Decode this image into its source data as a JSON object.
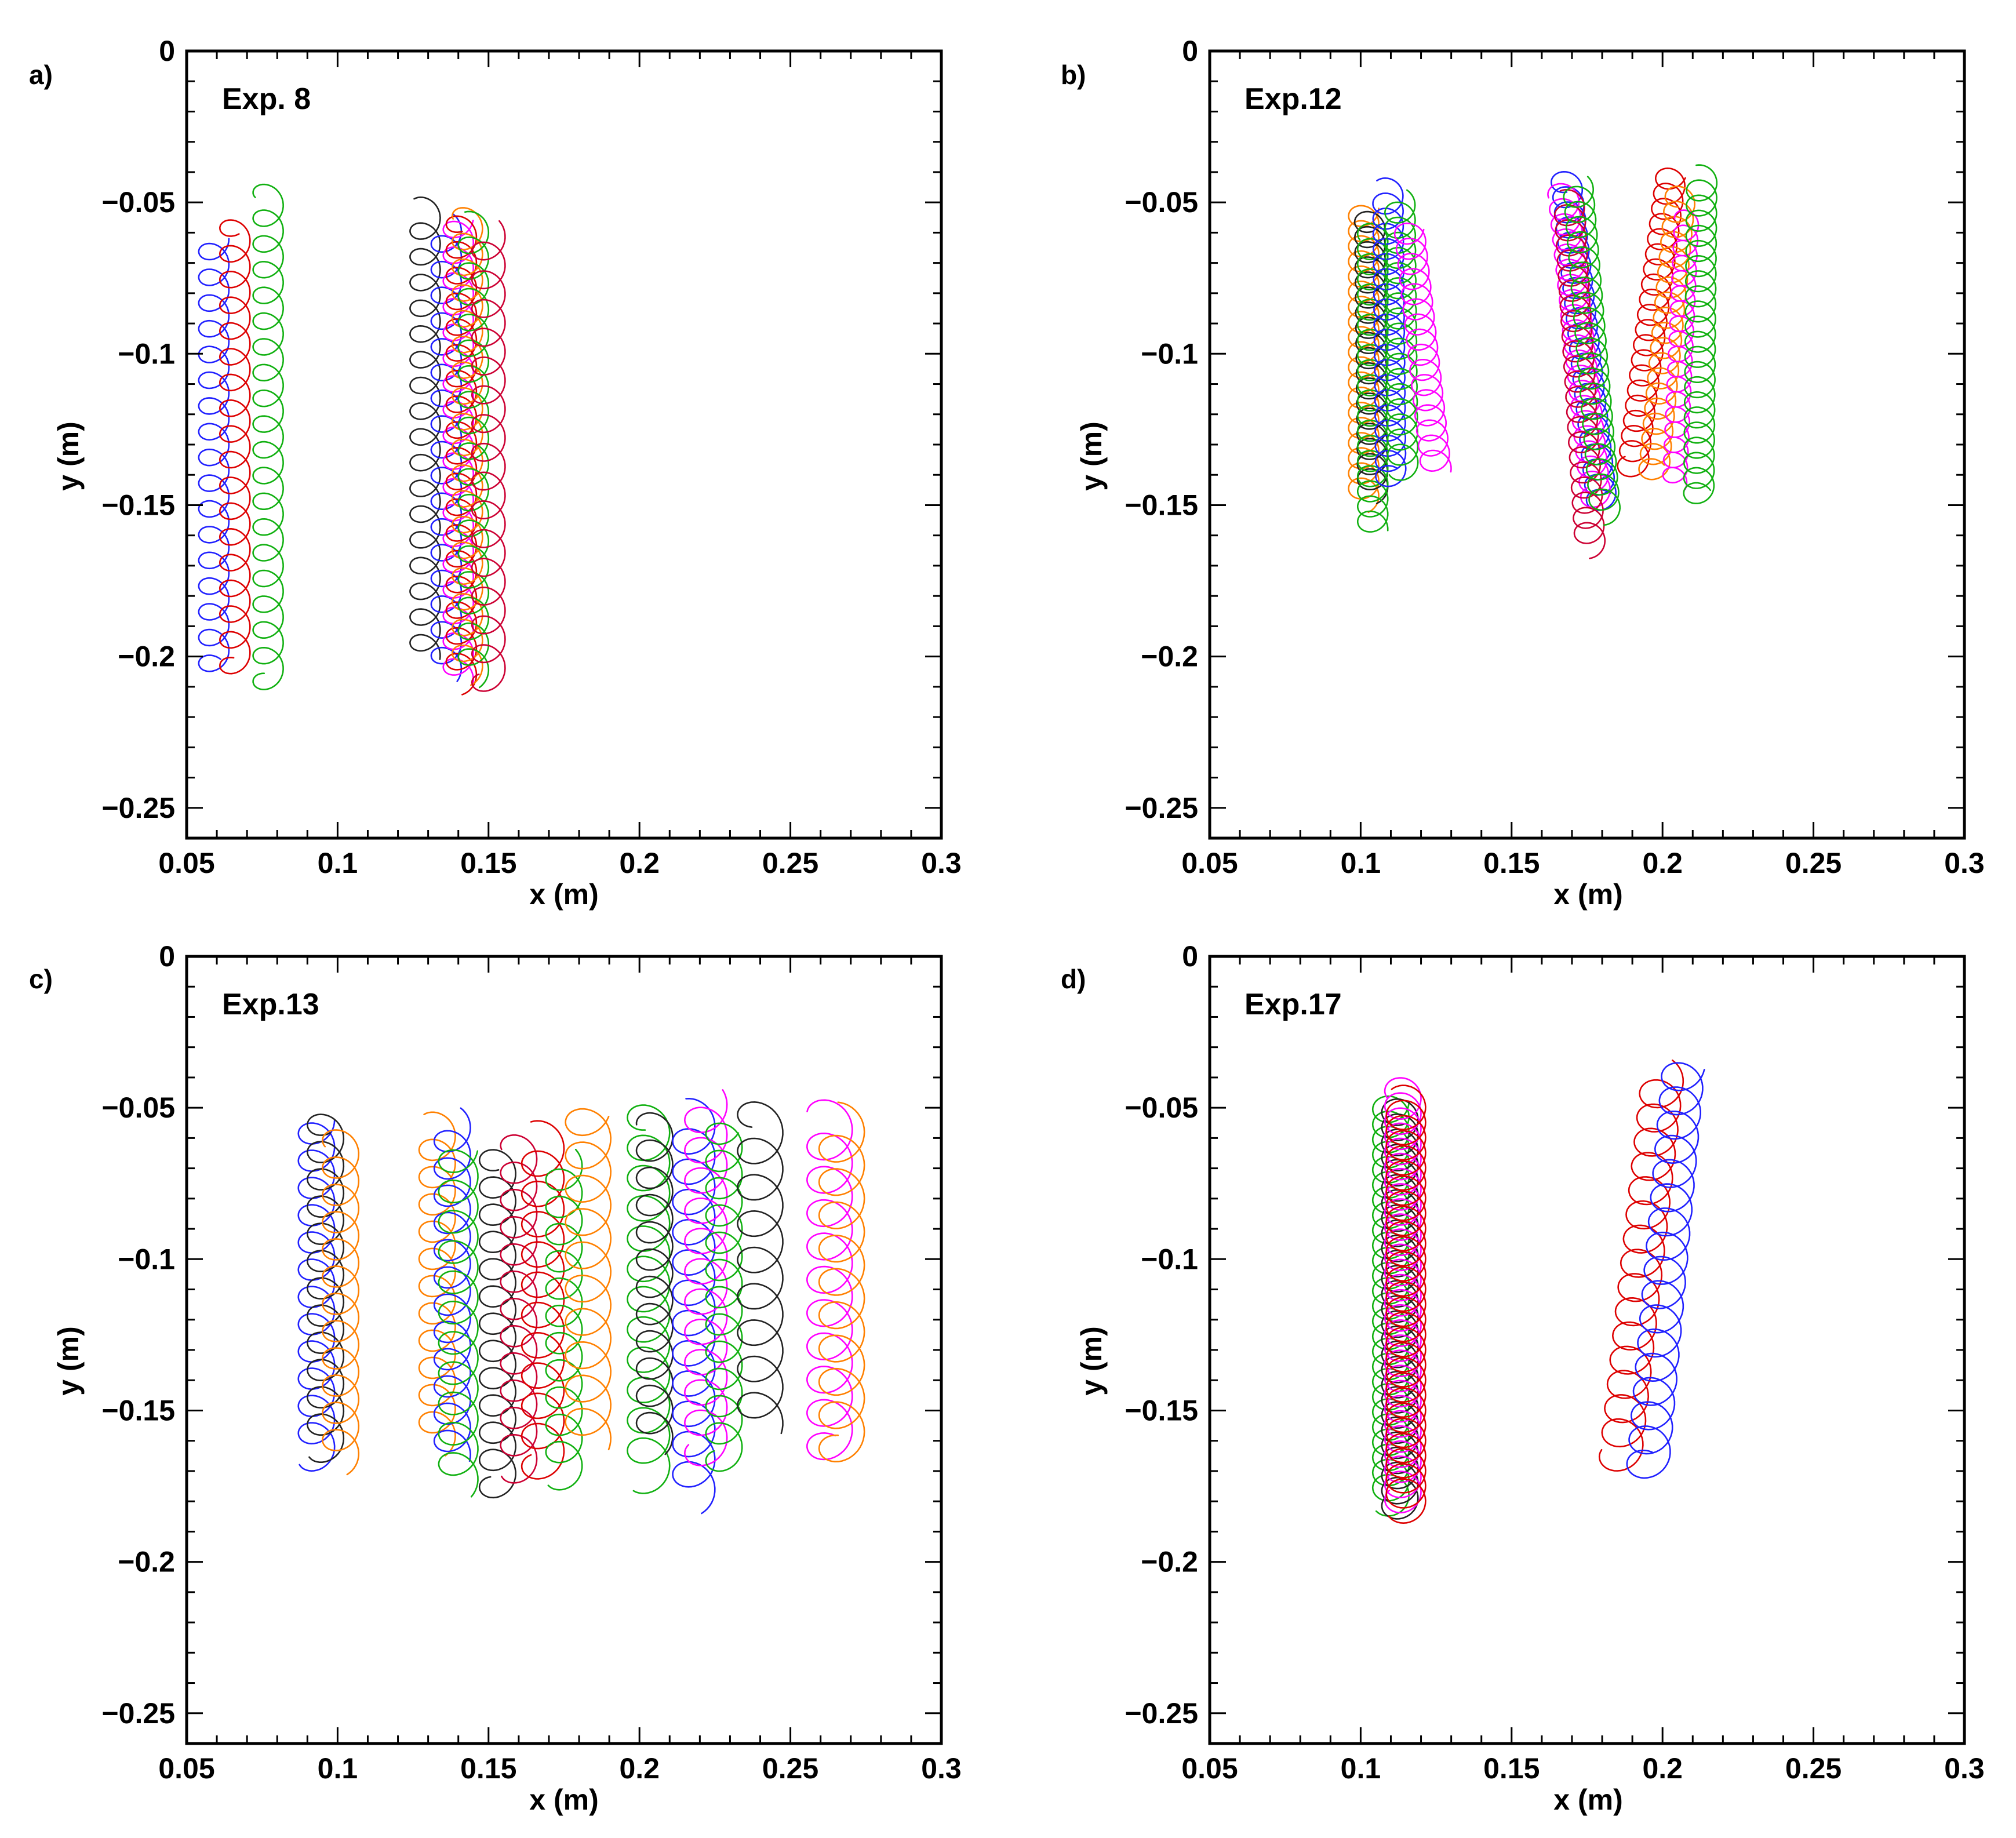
{
  "colors": {
    "blue": "#2020ff",
    "red": "#dd0000",
    "green": "#10b010",
    "black": "#222222",
    "magenta": "#ff00ff",
    "orange": "#ff8000",
    "crimson": "#cc0033"
  },
  "chart_data": [
    {
      "type": "line",
      "panel_label": "a)",
      "title": "Exp. 8",
      "xlabel": "x (m)",
      "ylabel": "y (m)",
      "xlim": [
        0.05,
        0.3
      ],
      "ylim": [
        -0.26,
        0
      ],
      "x_ticks": [
        0.05,
        0.1,
        0.15,
        0.2,
        0.25,
        0.3
      ],
      "x_tick_labels": [
        "0.05",
        "0.1",
        "0.15",
        "0.2",
        "0.25",
        "0.3"
      ],
      "y_ticks": [
        0,
        -0.05,
        -0.1,
        -0.15,
        -0.2,
        -0.25
      ],
      "y_tick_labels": [
        "0",
        "−0.05",
        "−0.1",
        "−0.15",
        "−0.2",
        "−0.25"
      ],
      "series": [
        {
          "name": "blue",
          "x0": 0.059,
          "x1": 0.059,
          "y_start": -0.062,
          "y_end": -0.205,
          "radius": 0.005,
          "pitch": 0.0085
        },
        {
          "name": "red",
          "x0": 0.066,
          "x1": 0.066,
          "y_start": -0.056,
          "y_end": -0.205,
          "radius": 0.005,
          "pitch": 0.0085
        },
        {
          "name": "green",
          "x0": 0.077,
          "x1": 0.077,
          "y_start": -0.046,
          "y_end": -0.21,
          "radius": 0.005,
          "pitch": 0.0085
        },
        {
          "name": "black",
          "x0": 0.129,
          "x1": 0.129,
          "y_start": -0.052,
          "y_end": -0.2,
          "radius": 0.005,
          "pitch": 0.0085
        },
        {
          "name": "blue",
          "x0": 0.136,
          "x1": 0.136,
          "y_start": -0.058,
          "y_end": -0.205,
          "radius": 0.005,
          "pitch": 0.0085
        },
        {
          "name": "magenta",
          "x0": 0.14,
          "x1": 0.14,
          "y_start": -0.055,
          "y_end": -0.208,
          "radius": 0.005,
          "pitch": 0.0085
        },
        {
          "name": "red",
          "x0": 0.141,
          "x1": 0.141,
          "y_start": -0.055,
          "y_end": -0.208,
          "radius": 0.005,
          "pitch": 0.0085
        },
        {
          "name": "orange",
          "x0": 0.143,
          "x1": 0.143,
          "y_start": -0.054,
          "y_end": -0.205,
          "radius": 0.005,
          "pitch": 0.0085
        },
        {
          "name": "green",
          "x0": 0.145,
          "x1": 0.145,
          "y_start": -0.057,
          "y_end": -0.206,
          "radius": 0.005,
          "pitch": 0.0085
        },
        {
          "name": "crimson",
          "x0": 0.15,
          "x1": 0.15,
          "y_start": -0.06,
          "y_end": -0.21,
          "radius": 0.0055,
          "pitch": 0.0095
        }
      ]
    },
    {
      "type": "line",
      "panel_label": "b)",
      "title": "Exp.12",
      "xlabel": "x (m)",
      "ylabel": "y (m)",
      "xlim": [
        0.05,
        0.3
      ],
      "ylim": [
        -0.26,
        0
      ],
      "x_ticks": [
        0.05,
        0.1,
        0.15,
        0.2,
        0.25,
        0.3
      ],
      "x_tick_labels": [
        "0.05",
        "0.1",
        "0.15",
        "0.2",
        "0.25",
        "0.3"
      ],
      "y_ticks": [
        0,
        -0.05,
        -0.1,
        -0.15,
        -0.2,
        -0.25
      ],
      "y_tick_labels": [
        "0",
        "−0.05",
        "−0.1",
        "−0.15",
        "−0.2",
        "−0.25"
      ],
      "series": [
        {
          "name": "orange",
          "x0": 0.101,
          "x1": 0.101,
          "y_start": -0.052,
          "y_end": -0.148,
          "radius": 0.005,
          "pitch": 0.005
        },
        {
          "name": "black",
          "x0": 0.103,
          "x1": 0.104,
          "y_start": -0.055,
          "y_end": -0.145,
          "radius": 0.005,
          "pitch": 0.005
        },
        {
          "name": "green",
          "x0": 0.104,
          "x1": 0.104,
          "y_start": -0.06,
          "y_end": -0.158,
          "radius": 0.005,
          "pitch": 0.005
        },
        {
          "name": "blue",
          "x0": 0.109,
          "x1": 0.11,
          "y_start": -0.046,
          "y_end": -0.142,
          "radius": 0.005,
          "pitch": 0.005
        },
        {
          "name": "green",
          "x0": 0.113,
          "x1": 0.114,
          "y_start": -0.05,
          "y_end": -0.138,
          "radius": 0.005,
          "pitch": 0.005
        },
        {
          "name": "magenta",
          "x0": 0.116,
          "x1": 0.125,
          "y_start": -0.058,
          "y_end": -0.138,
          "radius": 0.005,
          "pitch": 0.005
        },
        {
          "name": "blue",
          "x0": 0.168,
          "x1": 0.18,
          "y_start": -0.042,
          "y_end": -0.15,
          "radius": 0.005,
          "pitch": 0.005
        },
        {
          "name": "magenta",
          "x0": 0.167,
          "x1": 0.178,
          "y_start": -0.047,
          "y_end": -0.148,
          "radius": 0.005,
          "pitch": 0.005
        },
        {
          "name": "crimson",
          "x0": 0.169,
          "x1": 0.176,
          "y_start": -0.05,
          "y_end": -0.163,
          "radius": 0.005,
          "pitch": 0.005
        },
        {
          "name": "green",
          "x0": 0.172,
          "x1": 0.181,
          "y_start": -0.045,
          "y_end": -0.152,
          "radius": 0.005,
          "pitch": 0.005
        },
        {
          "name": "red",
          "x0": 0.203,
          "x1": 0.19,
          "y_start": -0.04,
          "y_end": -0.138,
          "radius": 0.005,
          "pitch": 0.005
        },
        {
          "name": "orange",
          "x0": 0.206,
          "x1": 0.197,
          "y_start": -0.047,
          "y_end": -0.14,
          "radius": 0.005,
          "pitch": 0.005
        },
        {
          "name": "magenta",
          "x0": 0.208,
          "x1": 0.204,
          "y_start": -0.055,
          "y_end": -0.143,
          "radius": 0.004,
          "pitch": 0.005
        },
        {
          "name": "green",
          "x0": 0.213,
          "x1": 0.212,
          "y_start": -0.042,
          "y_end": -0.148,
          "radius": 0.005,
          "pitch": 0.005
        }
      ]
    },
    {
      "type": "line",
      "panel_label": "c)",
      "title": "Exp.13",
      "xlabel": "x (m)",
      "ylabel": "y (m)",
      "xlim": [
        0.05,
        0.3
      ],
      "ylim": [
        -0.26,
        0
      ],
      "x_ticks": [
        0.05,
        0.1,
        0.15,
        0.2,
        0.25,
        0.3
      ],
      "x_tick_labels": [
        "0.05",
        "0.1",
        "0.15",
        "0.2",
        "0.25",
        "0.3"
      ],
      "y_ticks": [
        0,
        -0.05,
        -0.1,
        -0.15,
        -0.2,
        -0.25
      ],
      "y_tick_labels": [
        "0",
        "−0.05",
        "−0.1",
        "−0.15",
        "−0.2",
        "−0.25"
      ],
      "series": [
        {
          "name": "blue",
          "x0": 0.093,
          "x1": 0.093,
          "y_start": -0.054,
          "y_end": -0.166,
          "radius": 0.006,
          "pitch": 0.009
        },
        {
          "name": "black",
          "x0": 0.096,
          "x1": 0.096,
          "y_start": -0.053,
          "y_end": -0.163,
          "radius": 0.006,
          "pitch": 0.009
        },
        {
          "name": "orange",
          "x0": 0.101,
          "x1": 0.101,
          "y_start": -0.06,
          "y_end": -0.166,
          "radius": 0.006,
          "pitch": 0.009
        },
        {
          "name": "orange",
          "x0": 0.133,
          "x1": 0.133,
          "y_start": -0.056,
          "y_end": -0.16,
          "radius": 0.006,
          "pitch": 0.009
        },
        {
          "name": "blue",
          "x0": 0.138,
          "x1": 0.138,
          "y_start": -0.055,
          "y_end": -0.165,
          "radius": 0.006,
          "pitch": 0.009
        },
        {
          "name": "green",
          "x0": 0.14,
          "x1": 0.14,
          "y_start": -0.063,
          "y_end": -0.174,
          "radius": 0.0065,
          "pitch": 0.01
        },
        {
          "name": "black",
          "x0": 0.153,
          "x1": 0.153,
          "y_start": -0.065,
          "y_end": -0.177,
          "radius": 0.006,
          "pitch": 0.009
        },
        {
          "name": "crimson",
          "x0": 0.16,
          "x1": 0.16,
          "y_start": -0.062,
          "y_end": -0.17,
          "radius": 0.006,
          "pitch": 0.009
        },
        {
          "name": "red",
          "x0": 0.168,
          "x1": 0.168,
          "y_start": -0.06,
          "y_end": -0.17,
          "radius": 0.007,
          "pitch": 0.01
        },
        {
          "name": "green",
          "x0": 0.175,
          "x1": 0.175,
          "y_start": -0.068,
          "y_end": -0.172,
          "radius": 0.006,
          "pitch": 0.009
        },
        {
          "name": "orange",
          "x0": 0.183,
          "x1": 0.183,
          "y_start": -0.05,
          "y_end": -0.16,
          "radius": 0.0075,
          "pitch": 0.011
        },
        {
          "name": "green",
          "x0": 0.203,
          "x1": 0.203,
          "y_start": -0.051,
          "y_end": -0.172,
          "radius": 0.007,
          "pitch": 0.01
        },
        {
          "name": "black",
          "x0": 0.205,
          "x1": 0.205,
          "y_start": -0.055,
          "y_end": -0.16,
          "radius": 0.006,
          "pitch": 0.009
        },
        {
          "name": "blue",
          "x0": 0.218,
          "x1": 0.218,
          "y_start": -0.053,
          "y_end": -0.178,
          "radius": 0.007,
          "pitch": 0.01
        },
        {
          "name": "magenta",
          "x0": 0.222,
          "x1": 0.222,
          "y_start": -0.048,
          "y_end": -0.165,
          "radius": 0.007,
          "pitch": 0.01
        },
        {
          "name": "green",
          "x0": 0.228,
          "x1": 0.228,
          "y_start": -0.055,
          "y_end": -0.168,
          "radius": 0.006,
          "pitch": 0.009
        },
        {
          "name": "black",
          "x0": 0.24,
          "x1": 0.24,
          "y_start": -0.05,
          "y_end": -0.155,
          "radius": 0.0075,
          "pitch": 0.012
        },
        {
          "name": "magenta",
          "x0": 0.263,
          "x1": 0.263,
          "y_start": -0.052,
          "y_end": -0.165,
          "radius": 0.0075,
          "pitch": 0.011
        },
        {
          "name": "orange",
          "x0": 0.267,
          "x1": 0.267,
          "y_start": -0.055,
          "y_end": -0.165,
          "radius": 0.0075,
          "pitch": 0.011
        }
      ]
    },
    {
      "type": "line",
      "panel_label": "d)",
      "title": "Exp.17",
      "xlabel": "x (m)",
      "ylabel": "y (m)",
      "xlim": [
        0.05,
        0.3
      ],
      "ylim": [
        -0.26,
        0
      ],
      "x_ticks": [
        0.05,
        0.1,
        0.15,
        0.2,
        0.25,
        0.3
      ],
      "x_tick_labels": [
        "0.05",
        "0.1",
        "0.15",
        "0.2",
        "0.25",
        "0.3"
      ],
      "y_ticks": [
        0,
        -0.05,
        -0.1,
        -0.15,
        -0.2,
        -0.25
      ],
      "y_tick_labels": [
        "0",
        "−0.05",
        "−0.1",
        "−0.15",
        "−0.2",
        "−0.25"
      ],
      "series": [
        {
          "name": "green",
          "x0": 0.11,
          "x1": 0.11,
          "y_start": -0.048,
          "y_end": -0.18,
          "radius": 0.006,
          "pitch": 0.005
        },
        {
          "name": "black",
          "x0": 0.113,
          "x1": 0.113,
          "y_start": -0.05,
          "y_end": -0.182,
          "radius": 0.006,
          "pitch": 0.005
        },
        {
          "name": "magenta",
          "x0": 0.114,
          "x1": 0.114,
          "y_start": -0.044,
          "y_end": -0.18,
          "radius": 0.006,
          "pitch": 0.005
        },
        {
          "name": "red",
          "x0": 0.115,
          "x1": 0.115,
          "y_start": -0.048,
          "y_end": -0.182,
          "radius": 0.0065,
          "pitch": 0.005
        },
        {
          "name": "red",
          "x0": 0.2,
          "x1": 0.186,
          "y_start": -0.04,
          "y_end": -0.166,
          "radius": 0.007,
          "pitch": 0.008
        },
        {
          "name": "blue",
          "x0": 0.207,
          "x1": 0.195,
          "y_start": -0.036,
          "y_end": -0.17,
          "radius": 0.007,
          "pitch": 0.008
        }
      ]
    }
  ]
}
